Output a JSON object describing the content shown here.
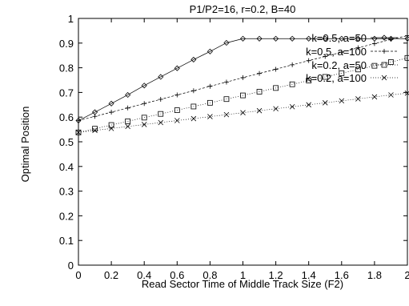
{
  "chart_data": {
    "type": "line",
    "title": "P1/P2=16, r=0.2, B=40",
    "xlabel": "Read Sector Time of Middle Track Size (F2)",
    "ylabel": "Optimal Position",
    "xlim": [
      0,
      2
    ],
    "ylim": [
      0,
      1
    ],
    "x_ticks": [
      "0",
      "0.2",
      "0.4",
      "0.6",
      "0.8",
      "1",
      "1.2",
      "1.4",
      "1.6",
      "1.8",
      "2"
    ],
    "y_ticks": [
      "0",
      "0.1",
      "0.2",
      "0.3",
      "0.4",
      "0.5",
      "0.6",
      "0.7",
      "0.8",
      "0.9",
      "1"
    ],
    "grid": false,
    "legend_position": "top-right",
    "series": [
      {
        "name": "k=0.5, a=50",
        "marker": "diamond",
        "dash": "solid",
        "x": [
          0,
          0.1,
          0.2,
          0.3,
          0.4,
          0.5,
          0.6,
          0.7,
          0.8,
          0.9,
          1.0,
          1.1,
          1.2,
          1.3,
          1.4,
          1.5,
          1.6,
          1.7,
          1.8,
          1.9,
          2.0
        ],
        "y": [
          0.586,
          0.62,
          0.655,
          0.69,
          0.728,
          0.763,
          0.798,
          0.833,
          0.866,
          0.901,
          0.918,
          0.918,
          0.918,
          0.918,
          0.918,
          0.918,
          0.918,
          0.918,
          0.918,
          0.918,
          0.918
        ]
      },
      {
        "name": "k=0.5, a=100",
        "marker": "plus",
        "dash": "dashed",
        "x": [
          0,
          0.1,
          0.2,
          0.3,
          0.4,
          0.5,
          0.6,
          0.7,
          0.8,
          0.9,
          1.0,
          1.1,
          1.2,
          1.3,
          1.4,
          1.5,
          1.6,
          1.7,
          1.8,
          1.9,
          2.0
        ],
        "y": [
          0.586,
          0.603,
          0.62,
          0.637,
          0.655,
          0.672,
          0.69,
          0.707,
          0.725,
          0.742,
          0.76,
          0.777,
          0.794,
          0.812,
          0.829,
          0.846,
          0.863,
          0.881,
          0.898,
          0.915,
          0.93
        ]
      },
      {
        "name": "k=0.2, a=50",
        "marker": "square",
        "dash": "dotted",
        "x": [
          0,
          0.1,
          0.2,
          0.3,
          0.4,
          0.5,
          0.6,
          0.7,
          0.8,
          0.9,
          1.0,
          1.1,
          1.2,
          1.3,
          1.4,
          1.5,
          1.6,
          1.7,
          1.8,
          1.9,
          2.0
        ],
        "y": [
          0.538,
          0.553,
          0.568,
          0.583,
          0.598,
          0.613,
          0.628,
          0.643,
          0.658,
          0.673,
          0.688,
          0.703,
          0.718,
          0.733,
          0.748,
          0.763,
          0.778,
          0.793,
          0.808,
          0.823,
          0.84
        ]
      },
      {
        "name": "k=0.2, a=100",
        "marker": "cross",
        "dash": "dotted",
        "x": [
          0,
          0.1,
          0.2,
          0.3,
          0.4,
          0.5,
          0.6,
          0.7,
          0.8,
          0.9,
          1.0,
          1.1,
          1.2,
          1.3,
          1.4,
          1.5,
          1.6,
          1.7,
          1.8,
          1.9,
          2.0
        ],
        "y": [
          0.538,
          0.546,
          0.554,
          0.562,
          0.57,
          0.578,
          0.586,
          0.594,
          0.602,
          0.61,
          0.618,
          0.626,
          0.634,
          0.642,
          0.65,
          0.658,
          0.666,
          0.674,
          0.682,
          0.69,
          0.697
        ]
      }
    ]
  }
}
